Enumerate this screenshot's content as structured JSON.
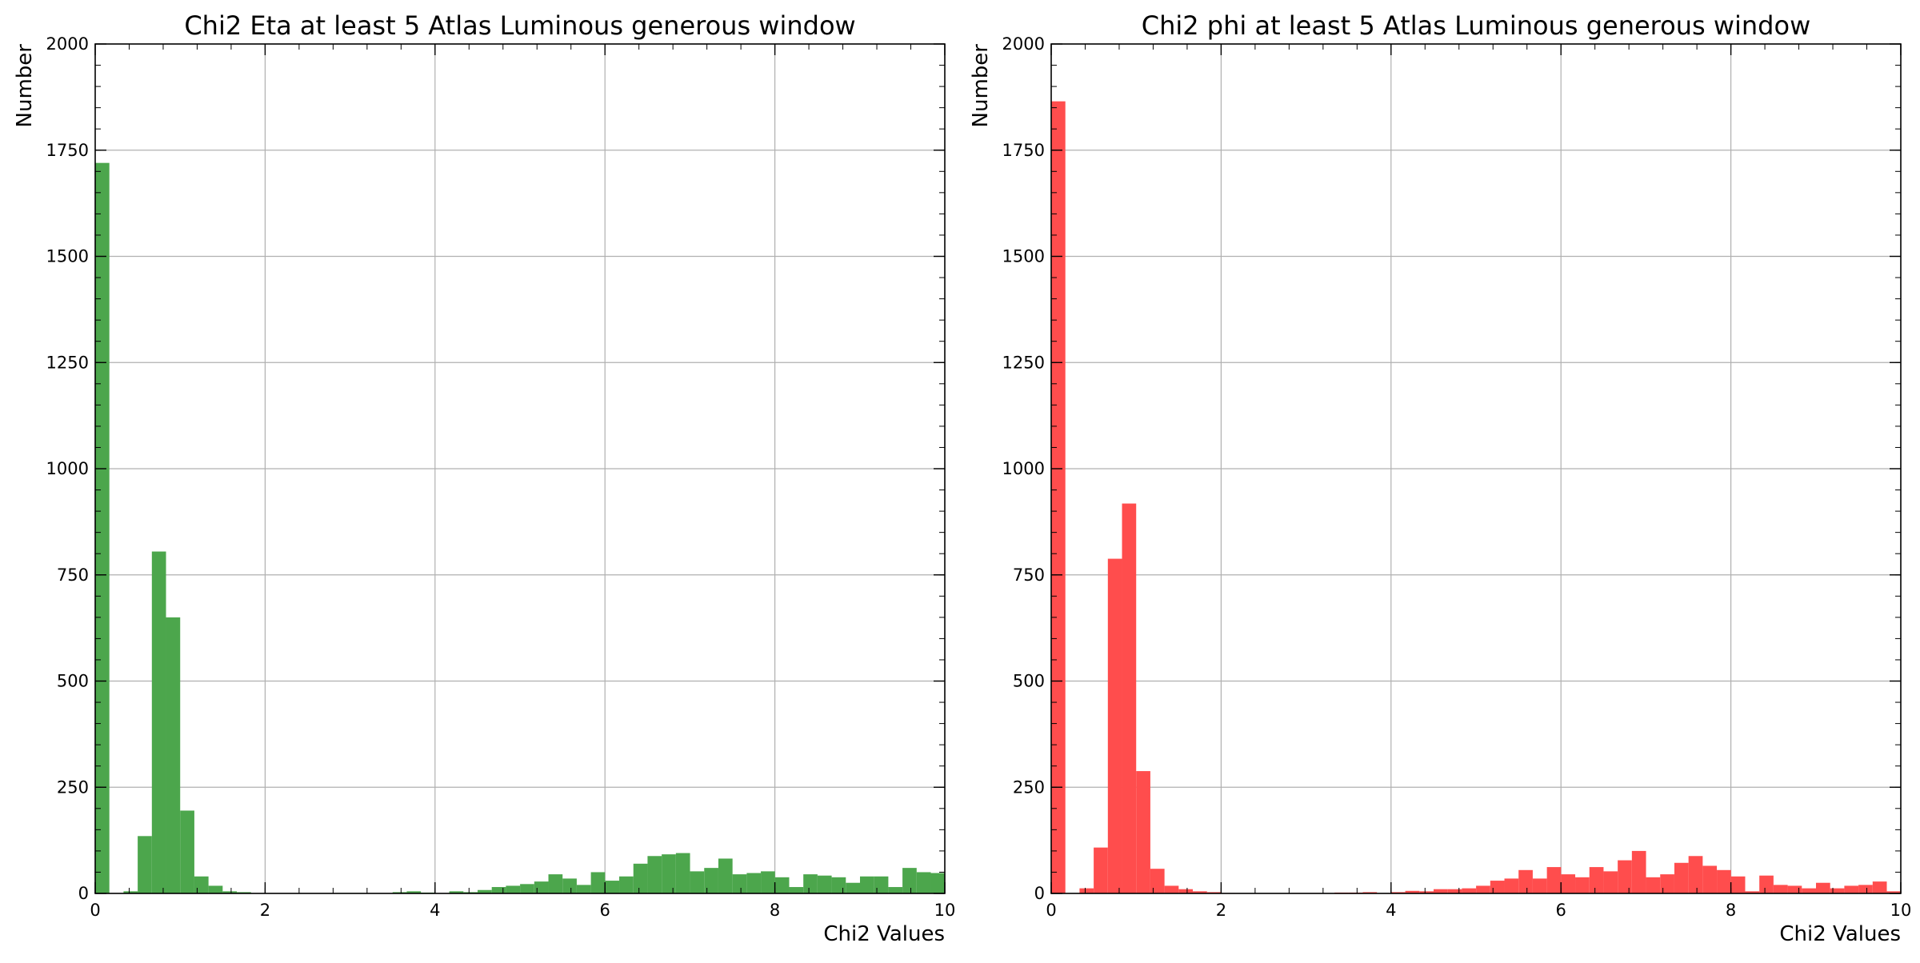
{
  "chart_data": [
    {
      "type": "bar",
      "title": "Chi2 Eta at least 5 Atlas Luminous generous window",
      "xlabel": "Chi2 Values",
      "ylabel": "Number",
      "xlim": [
        0,
        10
      ],
      "ylim": [
        0,
        2000
      ],
      "x_ticks": [
        "0",
        "2",
        "4",
        "6",
        "8",
        "10"
      ],
      "y_ticks": [
        "0",
        "250",
        "500",
        "750",
        "1000",
        "1250",
        "1500",
        "1750",
        "2000"
      ],
      "grid": true,
      "color": "#4ca64c",
      "bin_edges_start": 0,
      "bin_width": 0.1667,
      "values": [
        1720,
        0,
        5,
        135,
        805,
        650,
        195,
        40,
        18,
        5,
        3,
        0,
        0,
        0,
        0,
        0,
        0,
        1,
        1,
        0,
        0,
        3,
        5,
        2,
        0,
        5,
        3,
        8,
        15,
        18,
        22,
        28,
        45,
        35,
        20,
        50,
        30,
        40,
        70,
        88,
        92,
        95,
        52,
        60,
        82,
        45,
        48,
        52,
        38,
        15,
        45,
        42,
        38,
        25,
        40,
        40,
        15,
        60,
        50,
        48
      ]
    },
    {
      "type": "bar",
      "title": "Chi2 phi at least 5 Atlas Luminous generous window",
      "xlabel": "Chi2 Values",
      "ylabel": "Number",
      "xlim": [
        0,
        10
      ],
      "ylim": [
        0,
        2000
      ],
      "x_ticks": [
        "0",
        "2",
        "4",
        "6",
        "8",
        "10"
      ],
      "y_ticks": [
        "0",
        "250",
        "500",
        "750",
        "1000",
        "1250",
        "1500",
        "1750",
        "2000"
      ],
      "grid": true,
      "color": "#ff4d4d",
      "bin_edges_start": 0,
      "bin_width": 0.1667,
      "values": [
        1865,
        0,
        12,
        108,
        788,
        918,
        288,
        58,
        18,
        10,
        5,
        3,
        1,
        0,
        0,
        0,
        0,
        1,
        1,
        1,
        2,
        2,
        3,
        1,
        3,
        6,
        5,
        10,
        10,
        12,
        18,
        30,
        35,
        55,
        35,
        62,
        45,
        38,
        62,
        52,
        78,
        100,
        38,
        45,
        72,
        88,
        65,
        55,
        40,
        5,
        42,
        20,
        18,
        12,
        25,
        12,
        18,
        20,
        28,
        5
      ]
    }
  ]
}
